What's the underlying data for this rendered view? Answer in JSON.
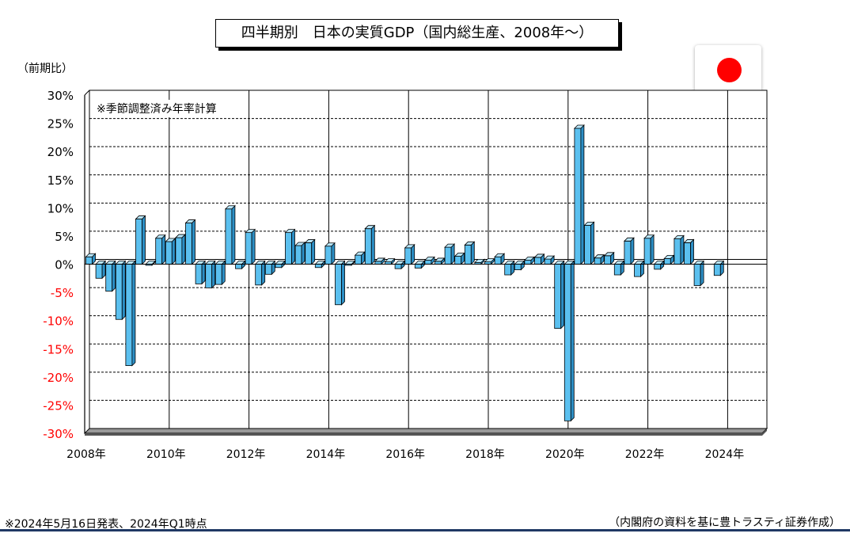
{
  "title": "四半期別　日本の実質GDP（国内総生産、2008年～）",
  "unit_label": "（前期比）",
  "note": "※季節調整済み年率計算",
  "footer_left": "※2024年5月16日発表、2024年Q1時点",
  "footer_right": "（内閣府の資料を基に豊トラスティ証券作成）",
  "flag": {
    "icon": "japan-flag-icon",
    "color": "#ff0000"
  },
  "colors": {
    "bar_front": "#5bc0ef",
    "bar_top": "#b9e6fa",
    "bar_side": "#2c8fc6",
    "negative_tick": "#ff0000"
  },
  "chart_data": {
    "type": "bar",
    "x_tick_labels": [
      "2008年",
      "2010年",
      "2012年",
      "2014年",
      "2016年",
      "2018年",
      "2020年",
      "2022年",
      "2024年"
    ],
    "y_tick_labels": [
      "30%",
      "25%",
      "20%",
      "15%",
      "10%",
      "5%",
      "0%",
      "-5%",
      "-10%",
      "-15%",
      "-20%",
      "-25%",
      "-30%"
    ],
    "ylim": [
      -30,
      30
    ],
    "grid": true,
    "series": [
      {
        "start": "2008Q1",
        "values": [
          1.3,
          -2.5,
          -4.8,
          -9.8,
          -18.0,
          8.0,
          -0.2,
          4.6,
          4.0,
          4.7,
          7.3,
          -3.5,
          -4.2,
          -3.6,
          9.8,
          -0.8,
          5.6,
          -3.7,
          -1.8,
          -0.6,
          5.6,
          3.3,
          3.8,
          -0.6,
          3.2,
          -7.2,
          -0.2,
          1.6,
          6.3,
          0.5,
          0.4,
          -0.8,
          2.9,
          -0.7,
          0.7,
          0.5,
          3.0,
          1.4,
          3.4,
          0.3,
          0.4,
          1.3,
          -1.9,
          -1.0,
          0.7,
          1.2,
          0.9,
          -11.4,
          -27.8,
          24.1,
          6.9,
          1.1,
          1.5,
          -1.9,
          4.1,
          -2.2,
          4.6,
          -0.9,
          1.0,
          4.5,
          3.8,
          -3.8,
          0.0,
          -2.0
        ]
      }
    ]
  }
}
